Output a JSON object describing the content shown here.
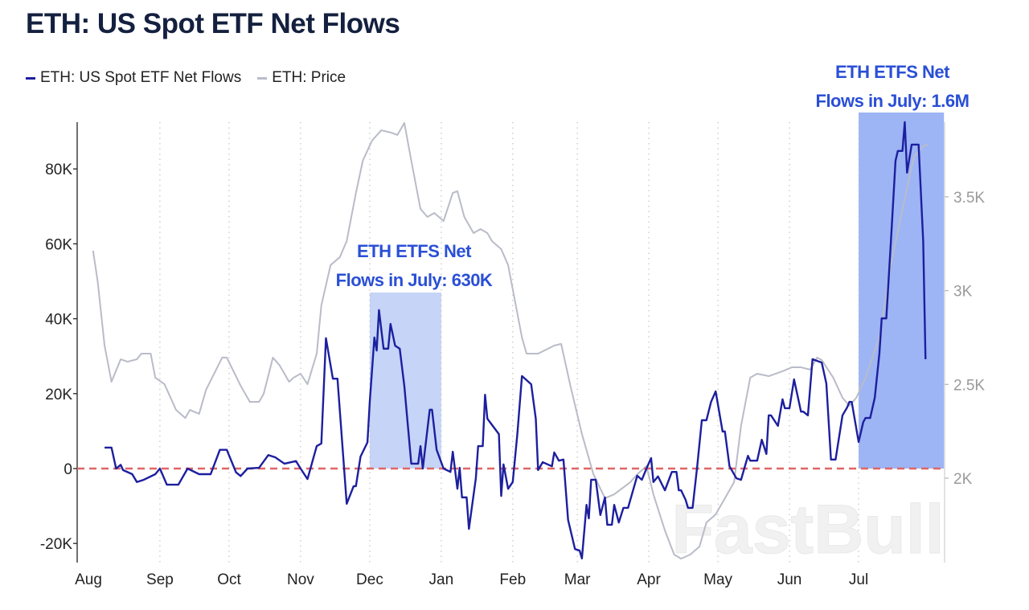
{
  "title": "ETH: US Spot ETF Net Flows",
  "legend": [
    {
      "name": "ETH: US Spot ETF Net Flows",
      "color": "#1c1f9e"
    },
    {
      "name": "ETH: Price",
      "color": "#b9bcc8"
    }
  ],
  "annotations": [
    {
      "line1": "ETH ETFS Net",
      "line2": "Flows in July: 630K",
      "shade_start": "2024-12-01",
      "shade_end": "2025-01-01",
      "shade_top": 47,
      "color": "#c5d4f7"
    },
    {
      "line1": "ETH ETFS Net",
      "line2": "Flows in July: 1.6M",
      "shade_start": "2025-07-01",
      "shade_end": "2025-08-07",
      "shade_top": 95,
      "color": "#9db4f5"
    }
  ],
  "watermark": "FastBull",
  "chart_data": {
    "type": "line",
    "title": "ETH: US Spot ETF Net Flows",
    "x_ticks": [
      "Aug",
      "Sep",
      "Oct",
      "Nov",
      "Dec",
      "Jan",
      "Feb",
      "Mar",
      "Apr",
      "May",
      "Jun",
      "Jul"
    ],
    "x_range": [
      "2024-08-01",
      "2025-08-07"
    ],
    "y_left": {
      "ticks": [
        80,
        60,
        40,
        20,
        0,
        -20
      ],
      "tick_labels": [
        "80K",
        "60K",
        "40K",
        "20K",
        "0",
        "-20K"
      ],
      "range": [
        -25,
        92.5
      ],
      "unit": "K"
    },
    "y_right": {
      "ticks": [
        3500,
        3000,
        2500,
        2000
      ],
      "tick_labels": [
        "3.5K",
        "3K",
        "2.5K",
        "2K"
      ],
      "range": [
        1550,
        3900
      ]
    },
    "grid": "vertical dotted at months",
    "zero_line": {
      "value": 0,
      "color": "#e06666",
      "style": "dashed"
    },
    "legend_position": "top-left",
    "series": [
      {
        "name": "ETH: US Spot ETF Net Flows",
        "axis": "left",
        "color": "#1c1f9e",
        "points": [
          [
            "2024-08-08",
            5.6
          ],
          [
            "2024-08-11",
            5.6
          ],
          [
            "2024-08-13",
            0
          ],
          [
            "2024-08-15",
            1.0
          ],
          [
            "2024-08-16",
            -0.4
          ],
          [
            "2024-08-20",
            -1.5
          ],
          [
            "2024-08-22",
            -3.6
          ],
          [
            "2024-08-25",
            -3.0
          ],
          [
            "2024-08-30",
            -1.5
          ],
          [
            "2024-09-01",
            0
          ],
          [
            "2024-09-04",
            -4.3
          ],
          [
            "2024-09-09",
            -4.3
          ],
          [
            "2024-09-13",
            0
          ],
          [
            "2024-09-18",
            -1.5
          ],
          [
            "2024-09-23",
            -1.5
          ],
          [
            "2024-09-27",
            5.0
          ],
          [
            "2024-09-30",
            5.0
          ],
          [
            "2024-10-04",
            -1.0
          ],
          [
            "2024-10-06",
            -2.0
          ],
          [
            "2024-10-09",
            0
          ],
          [
            "2024-10-14",
            0.2
          ],
          [
            "2024-10-18",
            3.6
          ],
          [
            "2024-10-21",
            3.0
          ],
          [
            "2024-10-25",
            1.3
          ],
          [
            "2024-10-30",
            2.0
          ],
          [
            "2024-11-01",
            0
          ],
          [
            "2024-11-04",
            -2.8
          ],
          [
            "2024-11-08",
            6.0
          ],
          [
            "2024-11-10",
            6.7
          ],
          [
            "2024-11-12",
            34.8
          ],
          [
            "2024-11-15",
            24.0
          ],
          [
            "2024-11-17",
            24.0
          ],
          [
            "2024-11-21",
            -9.4
          ],
          [
            "2024-11-24",
            -4.7
          ],
          [
            "2024-11-25",
            -4.7
          ],
          [
            "2024-11-27",
            3.2
          ],
          [
            "2024-11-30",
            7.0
          ],
          [
            "2024-12-01",
            17.8
          ],
          [
            "2024-12-03",
            35.0
          ],
          [
            "2024-12-04",
            31.5
          ],
          [
            "2024-12-05",
            42.3
          ],
          [
            "2024-12-07",
            32.0
          ],
          [
            "2024-12-09",
            32.0
          ],
          [
            "2024-12-10",
            38.6
          ],
          [
            "2024-12-12",
            32.8
          ],
          [
            "2024-12-14",
            32.0
          ],
          [
            "2024-12-16",
            22.0
          ],
          [
            "2024-12-19",
            1.3
          ],
          [
            "2024-12-22",
            1.3
          ],
          [
            "2024-12-23",
            6.0
          ],
          [
            "2024-12-24",
            0
          ],
          [
            "2024-12-27",
            15.7
          ],
          [
            "2024-12-28",
            15.7
          ],
          [
            "2024-12-30",
            5.0
          ],
          [
            "2025-01-02",
            0
          ],
          [
            "2025-01-05",
            -0.9
          ],
          [
            "2025-01-06",
            4.5
          ],
          [
            "2025-01-08",
            -5.4
          ],
          [
            "2025-01-09",
            0.2
          ],
          [
            "2025-01-10",
            -7.7
          ],
          [
            "2025-01-12",
            -7.7
          ],
          [
            "2025-01-13",
            -16.1
          ],
          [
            "2025-01-16",
            -2.6
          ],
          [
            "2025-01-17",
            6.0
          ],
          [
            "2025-01-19",
            6.0
          ],
          [
            "2025-01-20",
            19.7
          ],
          [
            "2025-01-21",
            13.3
          ],
          [
            "2025-01-26",
            9.2
          ],
          [
            "2025-01-27",
            -7.3
          ],
          [
            "2025-01-28",
            1.1
          ],
          [
            "2025-01-30",
            -5.4
          ],
          [
            "2025-02-01",
            -3.6
          ],
          [
            "2025-02-03",
            9.2
          ],
          [
            "2025-02-05",
            24.7
          ],
          [
            "2025-02-09",
            22.5
          ],
          [
            "2025-02-11",
            13.3
          ],
          [
            "2025-02-12",
            -0.4
          ],
          [
            "2025-02-14",
            1.7
          ],
          [
            "2025-02-18",
            0.6
          ],
          [
            "2025-02-19",
            4.3
          ],
          [
            "2025-02-21",
            2.1
          ],
          [
            "2025-02-23",
            2.4
          ],
          [
            "2025-02-25",
            -13.7
          ],
          [
            "2025-02-28",
            -21.5
          ],
          [
            "2025-03-02",
            -21.9
          ],
          [
            "2025-03-03",
            -24.0
          ],
          [
            "2025-03-05",
            -9.7
          ],
          [
            "2025-03-06",
            -13.3
          ],
          [
            "2025-03-07",
            -3.0
          ],
          [
            "2025-03-09",
            -3.0
          ],
          [
            "2025-03-11",
            -12.4
          ],
          [
            "2025-03-13",
            -7.7
          ],
          [
            "2025-03-14",
            -15.0
          ],
          [
            "2025-03-16",
            -15.0
          ],
          [
            "2025-03-17",
            -9.7
          ],
          [
            "2025-03-19",
            -14.4
          ],
          [
            "2025-03-21",
            -10.5
          ],
          [
            "2025-03-23",
            -10.5
          ],
          [
            "2025-03-27",
            -1.9
          ],
          [
            "2025-03-29",
            -3.0
          ],
          [
            "2025-03-31",
            0
          ],
          [
            "2025-04-02",
            2.8
          ],
          [
            "2025-04-03",
            -3.6
          ],
          [
            "2025-04-05",
            -2.1
          ],
          [
            "2025-04-08",
            -5.8
          ],
          [
            "2025-04-11",
            -0.9
          ],
          [
            "2025-04-13",
            -0.9
          ],
          [
            "2025-04-14",
            -5.8
          ],
          [
            "2025-04-15",
            -5.8
          ],
          [
            "2025-04-17",
            -8.4
          ],
          [
            "2025-04-18",
            -10.5
          ],
          [
            "2025-04-20",
            -10.5
          ],
          [
            "2025-04-22",
            0.6
          ],
          [
            "2025-04-24",
            12.9
          ],
          [
            "2025-04-26",
            12.9
          ],
          [
            "2025-04-28",
            17.8
          ],
          [
            "2025-04-30",
            20.6
          ],
          [
            "2025-05-03",
            9.9
          ],
          [
            "2025-05-04",
            9.9
          ],
          [
            "2025-05-06",
            0.6
          ],
          [
            "2025-05-09",
            -2.6
          ],
          [
            "2025-05-11",
            -3.0
          ],
          [
            "2025-05-14",
            3.4
          ],
          [
            "2025-05-15",
            2.1
          ],
          [
            "2025-05-18",
            2.1
          ],
          [
            "2025-05-20",
            7.7
          ],
          [
            "2025-05-22",
            3.9
          ],
          [
            "2025-05-23",
            14.2
          ],
          [
            "2025-05-24",
            14.2
          ],
          [
            "2025-05-27",
            11.4
          ],
          [
            "2025-05-29",
            18.5
          ],
          [
            "2025-05-30",
            16.1
          ],
          [
            "2025-06-01",
            16.1
          ],
          [
            "2025-06-03",
            23.8
          ],
          [
            "2025-06-06",
            15.2
          ],
          [
            "2025-06-07",
            15.2
          ],
          [
            "2025-06-09",
            14.2
          ],
          [
            "2025-06-11",
            29.2
          ],
          [
            "2025-06-15",
            28.3
          ],
          [
            "2025-06-17",
            22.7
          ],
          [
            "2025-06-19",
            2.4
          ],
          [
            "2025-06-21",
            2.4
          ],
          [
            "2025-06-24",
            14.2
          ],
          [
            "2025-06-26",
            16.3
          ],
          [
            "2025-06-27",
            17.8
          ],
          [
            "2025-06-28",
            17.8
          ],
          [
            "2025-07-01",
            7.1
          ],
          [
            "2025-07-03",
            12.4
          ],
          [
            "2025-07-04",
            13.5
          ],
          [
            "2025-07-06",
            13.5
          ],
          [
            "2025-07-08",
            18.9
          ],
          [
            "2025-07-10",
            30.7
          ],
          [
            "2025-07-11",
            40.1
          ],
          [
            "2025-07-13",
            40.1
          ],
          [
            "2025-07-15",
            60.7
          ],
          [
            "2025-07-17",
            82.2
          ],
          [
            "2025-07-18",
            84.8
          ],
          [
            "2025-07-20",
            84.8
          ],
          [
            "2025-07-21",
            92.5
          ],
          [
            "2025-07-22",
            79.0
          ],
          [
            "2025-07-24",
            86.5
          ],
          [
            "2025-07-27",
            86.5
          ],
          [
            "2025-07-29",
            60.7
          ],
          [
            "2025-07-30",
            29.2
          ]
        ]
      },
      {
        "name": "ETH: Price",
        "axis": "right",
        "color": "#b9bcc8",
        "points": [
          [
            "2024-08-03",
            3213
          ],
          [
            "2024-08-05",
            3050
          ],
          [
            "2024-08-08",
            2707
          ],
          [
            "2024-08-11",
            2514
          ],
          [
            "2024-08-15",
            2634
          ],
          [
            "2024-08-18",
            2621
          ],
          [
            "2024-08-22",
            2634
          ],
          [
            "2024-08-24",
            2664
          ],
          [
            "2024-08-28",
            2664
          ],
          [
            "2024-08-30",
            2536
          ],
          [
            "2024-09-03",
            2501
          ],
          [
            "2024-09-08",
            2364
          ],
          [
            "2024-09-12",
            2321
          ],
          [
            "2024-09-14",
            2364
          ],
          [
            "2024-09-18",
            2343
          ],
          [
            "2024-09-21",
            2471
          ],
          [
            "2024-09-28",
            2643
          ],
          [
            "2024-09-30",
            2643
          ],
          [
            "2024-10-06",
            2493
          ],
          [
            "2024-10-10",
            2407
          ],
          [
            "2024-10-14",
            2407
          ],
          [
            "2024-10-16",
            2450
          ],
          [
            "2024-10-20",
            2643
          ],
          [
            "2024-10-23",
            2600
          ],
          [
            "2024-10-27",
            2514
          ],
          [
            "2024-10-29",
            2536
          ],
          [
            "2024-11-01",
            2557
          ],
          [
            "2024-11-04",
            2501
          ],
          [
            "2024-11-08",
            2664
          ],
          [
            "2024-11-10",
            2921
          ],
          [
            "2024-11-14",
            3136
          ],
          [
            "2024-11-18",
            3178
          ],
          [
            "2024-11-21",
            3264
          ],
          [
            "2024-11-25",
            3521
          ],
          [
            "2024-11-28",
            3693
          ],
          [
            "2024-12-02",
            3800
          ],
          [
            "2024-12-06",
            3855
          ],
          [
            "2024-12-10",
            3843
          ],
          [
            "2024-12-13",
            3830
          ],
          [
            "2024-12-16",
            3894
          ],
          [
            "2024-12-19",
            3693
          ],
          [
            "2024-12-23",
            3435
          ],
          [
            "2024-12-26",
            3393
          ],
          [
            "2024-12-29",
            3414
          ],
          [
            "2025-01-02",
            3371
          ],
          [
            "2025-01-06",
            3521
          ],
          [
            "2025-01-08",
            3530
          ],
          [
            "2025-01-11",
            3393
          ],
          [
            "2025-01-15",
            3307
          ],
          [
            "2025-01-18",
            3328
          ],
          [
            "2025-01-21",
            3307
          ],
          [
            "2025-01-23",
            3264
          ],
          [
            "2025-01-27",
            3221
          ],
          [
            "2025-01-30",
            3136
          ],
          [
            "2025-02-05",
            2750
          ],
          [
            "2025-02-07",
            2664
          ],
          [
            "2025-02-12",
            2664
          ],
          [
            "2025-02-19",
            2707
          ],
          [
            "2025-02-22",
            2716
          ],
          [
            "2025-02-26",
            2493
          ],
          [
            "2025-03-03",
            2236
          ],
          [
            "2025-03-08",
            2021
          ],
          [
            "2025-03-13",
            1893
          ],
          [
            "2025-03-17",
            1914
          ],
          [
            "2025-03-24",
            1979
          ],
          [
            "2025-03-27",
            2021
          ],
          [
            "2025-03-31",
            2064
          ],
          [
            "2025-04-03",
            1914
          ],
          [
            "2025-04-08",
            1721
          ],
          [
            "2025-04-12",
            1593
          ],
          [
            "2025-04-15",
            1571
          ],
          [
            "2025-04-19",
            1593
          ],
          [
            "2025-04-23",
            1636
          ],
          [
            "2025-04-26",
            1764
          ],
          [
            "2025-04-30",
            1807
          ],
          [
            "2025-05-04",
            1893
          ],
          [
            "2025-05-08",
            1979
          ],
          [
            "2025-05-11",
            2279
          ],
          [
            "2025-05-15",
            2536
          ],
          [
            "2025-05-18",
            2557
          ],
          [
            "2025-05-23",
            2544
          ],
          [
            "2025-05-29",
            2570
          ],
          [
            "2025-06-02",
            2591
          ],
          [
            "2025-06-06",
            2591
          ],
          [
            "2025-06-10",
            2579
          ],
          [
            "2025-06-13",
            2643
          ],
          [
            "2025-06-15",
            2630
          ],
          [
            "2025-06-20",
            2536
          ],
          [
            "2025-06-24",
            2429
          ],
          [
            "2025-06-27",
            2386
          ],
          [
            "2025-06-30",
            2429
          ],
          [
            "2025-07-04",
            2536
          ],
          [
            "2025-07-10",
            2750
          ],
          [
            "2025-07-15",
            3136
          ],
          [
            "2025-07-20",
            3435
          ],
          [
            "2025-07-25",
            3714
          ],
          [
            "2025-07-29",
            3770
          ],
          [
            "2025-07-31",
            3778
          ]
        ]
      }
    ]
  }
}
